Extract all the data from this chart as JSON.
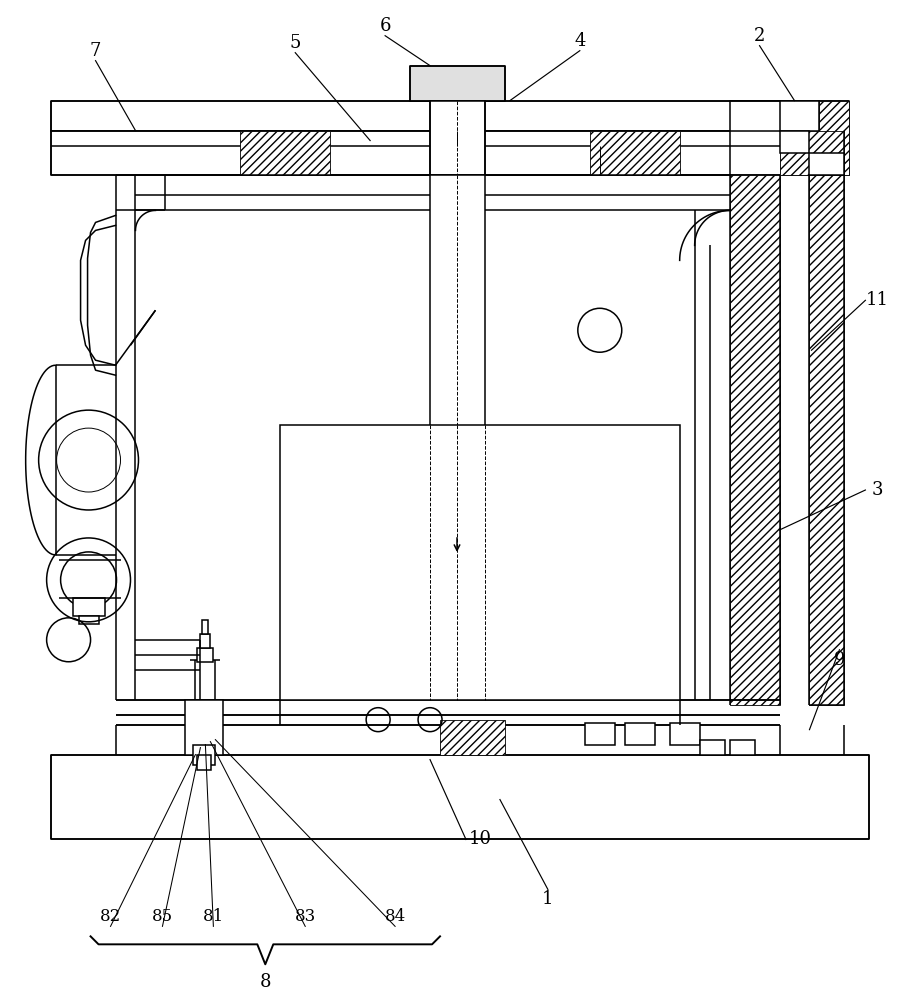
{
  "bg": "#ffffff",
  "lc": "#000000",
  "figsize": [
    9.23,
    10.0
  ],
  "dpi": 100,
  "lw": 1.1,
  "lws": 0.7
}
